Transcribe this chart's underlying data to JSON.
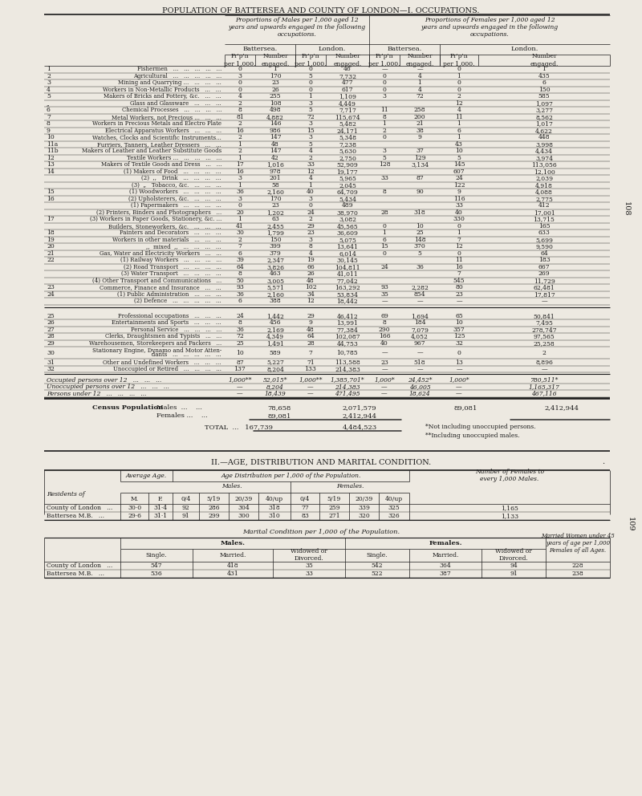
{
  "title1": "POPULATION OF BATTERSEA AND COUNTY OF LONDON—I. OCCUPATIONS.",
  "title2": "II.—AGE, DISTRIBUTION AND MARITAL CONDITION.",
  "bg_color": "#ede9e1",
  "text_color": "#1a1a1a",
  "males_header": "Proportions of Males per 1,000 aged 12\nyears and upwards engaged in the following\noccupations.",
  "females_header": "Proportions of Females per 1,000 aged 12\nyears and upwards engaged in the following\noccupations.",
  "occupation_rows": [
    [
      "1",
      "Fishermen   ...   ...   ...   ...   ...",
      "0",
      "1",
      "0",
      "46",
      "—",
      "—",
      "0",
      "1"
    ],
    [
      "2",
      "Agricultural   ...   ...   ...   ...   ...",
      "3",
      "170",
      "5",
      "7,732",
      "0",
      "4",
      "1",
      "435"
    ],
    [
      "3",
      "Mining and Quarrying ...   ...   ...   ...",
      "0",
      "23",
      "0",
      "477",
      "0",
      "1",
      "0",
      "6"
    ],
    [
      "4",
      "Workers in Non-Metallic Products   ...   ...",
      "0",
      "26",
      "0",
      "617",
      "0",
      "4",
      "0",
      "150"
    ],
    [
      "5",
      "Makers of Bricks and Pottery, &c.   ...   ...",
      "4",
      "255",
      "1",
      "1,109",
      "3",
      "72",
      "2",
      "585"
    ],
    [
      ",,",
      "Glass and Glassware   ...   ...   ...",
      "2",
      "108",
      "3",
      "4,449",
      "",
      "",
      "12",
      "1,097"
    ],
    [
      "6",
      "Chemical Processes   ...   ...   ...   ...",
      "8",
      "498",
      "5",
      "7,717",
      "11",
      "258",
      "4",
      "3,277"
    ],
    [
      "7",
      "Metal Workers, not Precious ...   ...   ...",
      "81",
      "4,882",
      "72",
      "115,674",
      "8",
      "200",
      "11",
      "8,562"
    ],
    [
      "8",
      "Workers in Precious Metals and Electro Plate",
      "2",
      "146",
      "3",
      "5,482",
      "1",
      "21",
      "1",
      "1,017"
    ],
    [
      "9",
      "Electrical Apparatus Workers   ...   ...   ...",
      "16",
      "986",
      "15",
      "24,171",
      "2",
      "38",
      "6",
      "4,622"
    ],
    [
      "10",
      "Watches, Clocks and Scientific Instruments...",
      "2",
      "147",
      "3",
      "5,348",
      "0",
      "9",
      "1",
      "448"
    ],
    [
      "11a",
      "Furriers, Tanners, Leather Dressers   ...   ...",
      "1",
      "48",
      "5",
      "7,238",
      "",
      "",
      "43",
      "3,998"
    ],
    [
      "11b",
      "Makers of Leather and Leather Substitute Goods",
      "2",
      "147",
      "4",
      "5,630",
      "3",
      "37",
      "10",
      "4,434"
    ],
    [
      "12",
      "Textile Workers ...   ...   ...   ...   ...",
      "1",
      "42",
      "2",
      "2,750",
      "5",
      "129",
      "5",
      "3,974"
    ],
    [
      "13",
      "Makers of Textile Goods and Dress   ...   ...",
      "17",
      "1,016",
      "33",
      "52,909",
      "128",
      "3,134",
      "145",
      "113,056"
    ],
    [
      "14",
      "(1) Makers of Food   ...   ...   ...   ...",
      "16",
      "978",
      "12",
      "19,177",
      "",
      "",
      "607",
      "12,100"
    ],
    [
      "",
      "(2)  ,,   Drink   ...   ...   ...   ...",
      "3",
      "201",
      "4",
      "5,965",
      "33",
      "87",
      "24",
      "2,039"
    ],
    [
      "",
      "(3)  „   Tobacco, &c.   ...   ...   ...",
      "1",
      "58",
      "1",
      "2,045",
      "",
      "",
      "122",
      "4,918"
    ],
    [
      "15",
      "(1) Woodworkers   ...   ...   ...   ...",
      "36",
      "2,160",
      "40",
      "64,709",
      "8",
      "90",
      "9",
      "4,088"
    ],
    [
      "16",
      "(2) Upholsterers, &c.   ...   ...   ...",
      "3",
      "170",
      "3",
      "5,434",
      "",
      "",
      "116",
      "2,775"
    ],
    [
      "",
      "(1) Papermakers   ...   ...   ...   ...",
      "0",
      "23",
      "0",
      "489",
      "",
      "",
      "33",
      "412"
    ],
    [
      "",
      "(2) Printers, Binders and Photographers   ...",
      "20",
      "1,202",
      "24",
      "38,970",
      "28",
      "318",
      "40",
      "17,001"
    ],
    [
      "17",
      "(3) Workers in Paper Goods, Stationery, &c. ...",
      "1",
      "63",
      "2",
      "3,082",
      "",
      "",
      "330",
      "13,715"
    ],
    [
      "",
      "Builders, Stoneworkers, &c.   ...   ...   ...",
      "41",
      "2,455",
      "29",
      "45,565",
      "0",
      "10",
      "0",
      "165"
    ],
    [
      "18",
      "Painters and Decorators   ...   ...   ...",
      "30",
      "1,799",
      "23",
      "36,609",
      "1",
      "25",
      "1",
      "633"
    ],
    [
      "19",
      "Workers in other materials   ...   ...   ...",
      "2",
      "150",
      "3",
      "5,075",
      "6",
      "148",
      "7",
      "5,699"
    ],
    [
      "20",
      ",,  mixed  ,,   ...   ...   ...   ...",
      "7",
      "399",
      "8",
      "13,641",
      "15",
      "370",
      "12",
      "9,590"
    ],
    [
      "21",
      "Gas, Water and Electricity Workers   ...   ...",
      "6",
      "379",
      "4",
      "6,014",
      "0",
      "5",
      "0",
      "64"
    ],
    [
      "22",
      "(1) Railway Workers   ...   ...   ...   ...",
      "39",
      "2,347",
      "19",
      "30,145",
      "",
      "",
      "11",
      "183"
    ],
    [
      "",
      "(2) Road Transport   ...   ...   ...   ...",
      "64",
      "3,826",
      "66",
      "104,811",
      "24",
      "36",
      "16",
      "667"
    ],
    [
      "",
      "(3) Water Transport   ...   ...   ...   ...",
      "8",
      "463",
      "26",
      "41,011",
      "",
      "",
      "7",
      "269"
    ],
    [
      "",
      "(4) Other Transport and Communications   ...",
      "50",
      "3,005",
      "48",
      "77,042",
      "",
      "",
      "545",
      "11,729"
    ],
    [
      "23",
      "Commerce, Finance and Insurance   ...   ...",
      "93",
      "5,571",
      "102",
      "163,292",
      "93",
      "2,282",
      "80",
      "62,481"
    ],
    [
      "24",
      "(1) Public Administration   ...   ...   ...",
      "36",
      "2,160",
      "34",
      "53,834",
      "35",
      "854",
      "23",
      "17,817"
    ],
    [
      "",
      "(2) Defence   ...   ...   ...   ...   ...",
      "6",
      "388",
      "12",
      "18,442",
      "—",
      "—",
      "—",
      "—"
    ]
  ],
  "occupation_rows2": [
    [
      "25",
      "Professional occupations   ...   ...   ...",
      "24",
      "1,442",
      "29",
      "46,412",
      "69",
      "1,694",
      "65",
      "50,841"
    ],
    [
      "26",
      "Entertainments and Sports   ...   ...   ...",
      "8",
      "456",
      "9",
      "13,991",
      "8",
      "184",
      "10",
      "7,495"
    ],
    [
      "27",
      "Personal Service   ...   ...   ...   ...",
      "36",
      "2,169",
      "48",
      "77,384",
      "290",
      "7,079",
      "357",
      "278,747"
    ],
    [
      "28",
      "Clerks, Draughtsmen and Typists   ...   ...",
      "72",
      "4,349",
      "64",
      "102,087",
      "166",
      "4,052",
      "125",
      "97,565"
    ],
    [
      "29",
      "Warehousemen, Storekeepers and Packers   ...",
      "25",
      "1,491",
      "28",
      "44,753",
      "40",
      "967",
      "32",
      "25,258"
    ],
    [
      "30",
      "Stationary Engine, Dynamo and Motor Atten-\n       dants   ...   ...   ...   ...   ...",
      "10",
      "589",
      "7",
      "10,785",
      "—",
      "—",
      "0",
      "2"
    ],
    [
      "31",
      "Other and Undefined Workers   ...   ...   ...",
      "87",
      "5,227",
      "71",
      "113,588",
      "23",
      "518",
      "13",
      "8,896"
    ],
    [
      "32",
      "Unoccupied or Retired   ...   ...   ...   ...",
      "137",
      "8,204",
      "133",
      "214,383",
      "—",
      "—",
      "—",
      "—"
    ]
  ],
  "summary_rows": [
    [
      "Occupied persons over 12   ...   ...   ...",
      "1,000**",
      "52,015*",
      "1,000**",
      "1,385,701*",
      "1,000*",
      "24,452*",
      "1,000*",
      "780,511*"
    ],
    [
      "Unoccupied persons over 12   ...   ...   ...",
      "—",
      "8,204",
      "—",
      "214,383",
      "—",
      "46,005",
      "—",
      "1,165,317"
    ],
    [
      "Persons under 12   ...   ...   ...   ...",
      "—",
      "18,439",
      "—",
      "471,495",
      "—",
      "18,624",
      "—",
      "467,116"
    ]
  ],
  "age_table_rows": [
    [
      "County of London   ...",
      "30·0",
      "31·4",
      "92",
      "286",
      "304",
      "318",
      "77",
      "259",
      "339",
      "325",
      "1,165"
    ],
    [
      "Battersea M.B.   ...",
      "29·6",
      "31·1",
      "91",
      "299",
      "300",
      "310",
      "83",
      "271",
      "320",
      "326",
      "1,133"
    ]
  ],
  "marital_table_rows": [
    [
      "County of London   ...",
      "547",
      "418",
      "35",
      "542",
      "364",
      "94",
      "228"
    ],
    [
      "Battersea M.B.   ...",
      "536",
      "431",
      "33",
      "522",
      "387",
      "91",
      "238"
    ]
  ]
}
